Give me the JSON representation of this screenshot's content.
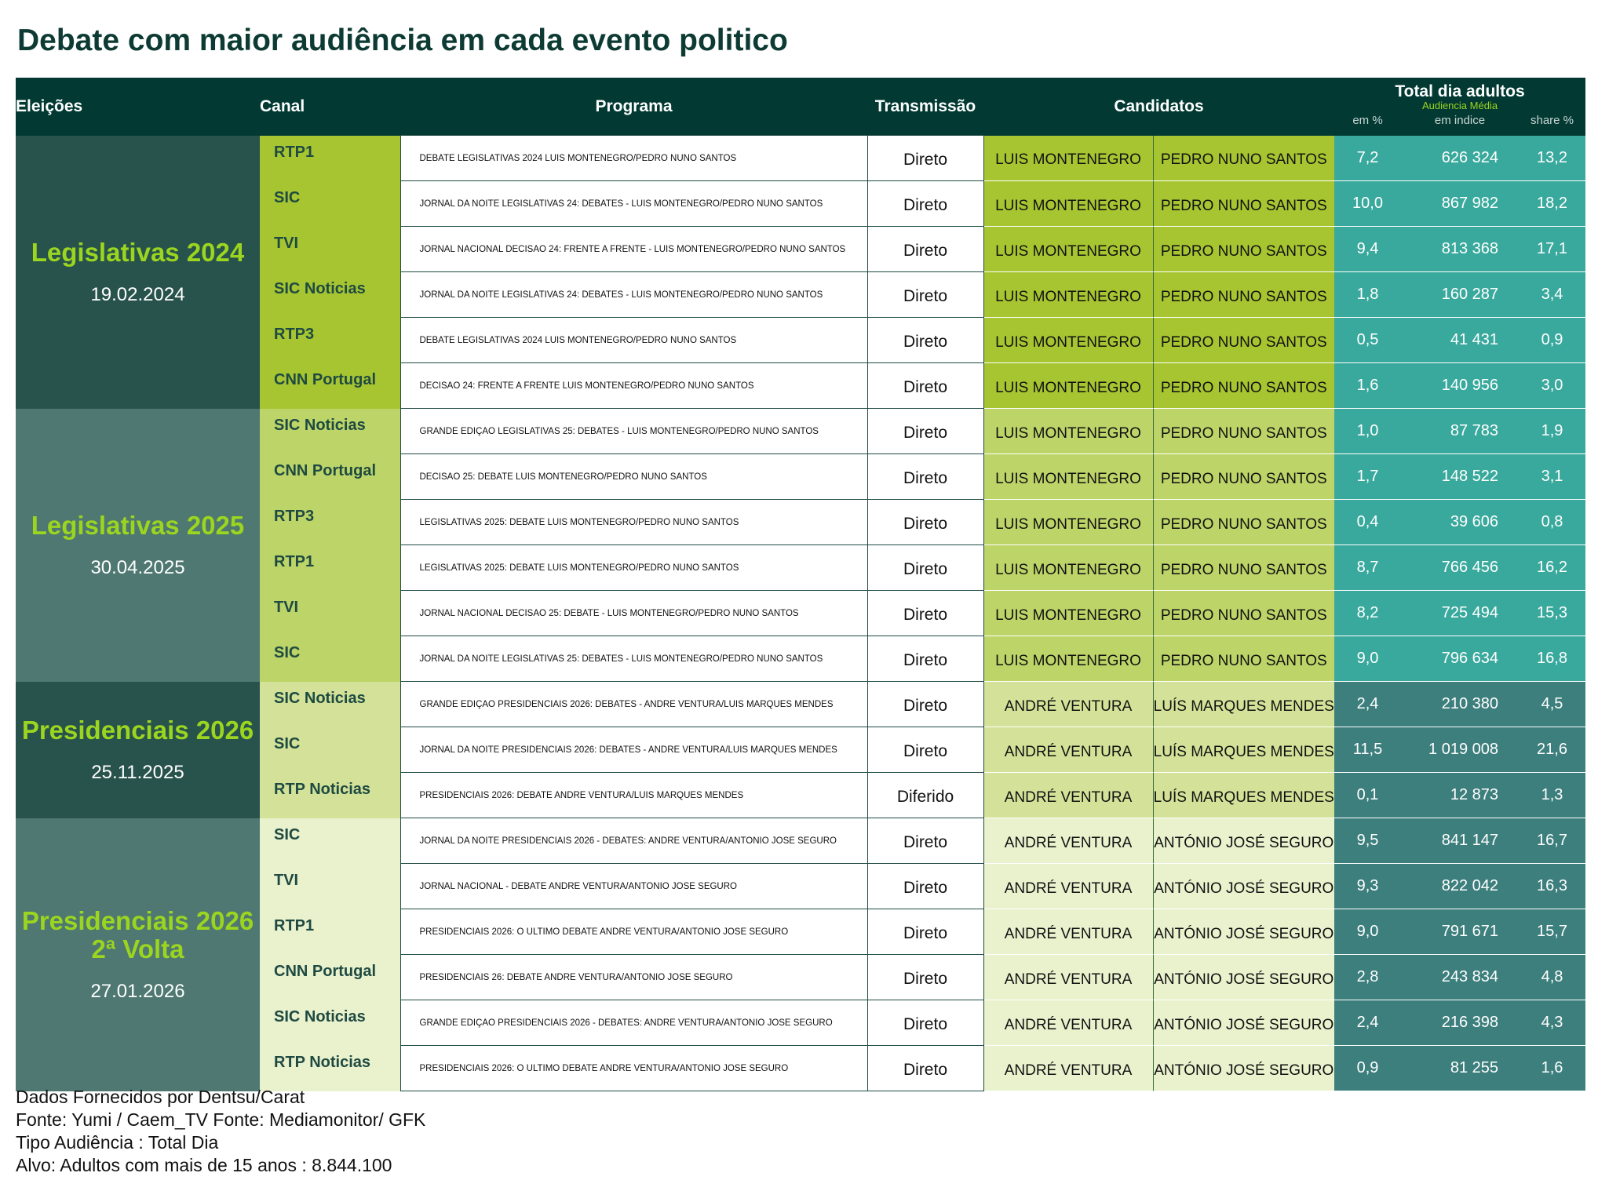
{
  "title": "Debate com maior audiência em cada evento politico",
  "header": {
    "eleicoes": "Eleições",
    "canal": "Canal",
    "programa": "Programa",
    "transmissao": "Transmissão",
    "candidatos": "Candidatos",
    "total": "Total dia adultos",
    "audiencia": "Audiencia Média",
    "em_pct": "em %",
    "em_indice": "em indice",
    "share": "share %"
  },
  "colors": {
    "header_bg": "#023a33",
    "elec_dark": "#28534d",
    "elec_light": "#4e7871",
    "accent": "#9bd51f",
    "canal_g1": "#a7c531",
    "canal_g2": "#bdd468",
    "canal_g3": "#d3e298",
    "canal_g4": "#e9f1cd",
    "teal_light": "#3aa99d",
    "teal_dark": "#3d7f7d"
  },
  "groups": [
    {
      "name": "Legislativas 2024",
      "date": "19.02.2024",
      "rows": [
        {
          "canal": "RTP1",
          "programa": "DEBATE LEGISLATIVAS 2024 LUIS MONTENEGRO/PEDRO NUNO SANTOS",
          "transmissao": "Direto",
          "cand1": "LUIS MONTENEGRO",
          "cand2": "PEDRO NUNO SANTOS",
          "pct": "7,2",
          "idx": "626 324",
          "share": "13,2"
        },
        {
          "canal": "SIC",
          "programa": "JORNAL DA NOITE LEGISLATIVAS 24: DEBATES - LUIS MONTENEGRO/PEDRO NUNO SANTOS",
          "transmissao": "Direto",
          "cand1": "LUIS MONTENEGRO",
          "cand2": "PEDRO NUNO SANTOS",
          "pct": "10,0",
          "idx": "867 982",
          "share": "18,2"
        },
        {
          "canal": "TVI",
          "programa": "JORNAL NACIONAL DECISAO 24: FRENTE A FRENTE - LUIS MONTENEGRO/PEDRO NUNO SANTOS",
          "transmissao": "Direto",
          "cand1": "LUIS MONTENEGRO",
          "cand2": "PEDRO NUNO SANTOS",
          "pct": "9,4",
          "idx": "813 368",
          "share": "17,1"
        },
        {
          "canal": "SIC Noticias",
          "programa": "JORNAL DA NOITE LEGISLATIVAS 24: DEBATES - LUIS MONTENEGRO/PEDRO NUNO SANTOS",
          "transmissao": "Direto",
          "cand1": "LUIS MONTENEGRO",
          "cand2": "PEDRO NUNO SANTOS",
          "pct": "1,8",
          "idx": "160 287",
          "share": "3,4"
        },
        {
          "canal": "RTP3",
          "programa": "DEBATE LEGISLATIVAS 2024 LUIS MONTENEGRO/PEDRO NUNO SANTOS",
          "transmissao": "Direto",
          "cand1": "LUIS MONTENEGRO",
          "cand2": "PEDRO NUNO SANTOS",
          "pct": "0,5",
          "idx": "41 431",
          "share": "0,9"
        },
        {
          "canal": "CNN Portugal",
          "programa": "DECISAO 24: FRENTE A FRENTE LUIS MONTENEGRO/PEDRO NUNO SANTOS",
          "transmissao": "Direto",
          "cand1": "LUIS MONTENEGRO",
          "cand2": "PEDRO NUNO SANTOS",
          "pct": "1,6",
          "idx": "140 956",
          "share": "3,0"
        }
      ]
    },
    {
      "name": "Legislativas 2025",
      "date": "30.04.2025",
      "rows": [
        {
          "canal": "SIC Noticias",
          "programa": "GRANDE EDIÇAO LEGISLATIVAS 25: DEBATES - LUIS MONTENEGRO/PEDRO NUNO SANTOS",
          "transmissao": "Direto",
          "cand1": "LUIS MONTENEGRO",
          "cand2": "PEDRO NUNO SANTOS",
          "pct": "1,0",
          "idx": "87 783",
          "share": "1,9"
        },
        {
          "canal": "CNN Portugal",
          "programa": "DECISAO 25: DEBATE LUIS MONTENEGRO/PEDRO NUNO SANTOS",
          "transmissao": "Direto",
          "cand1": "LUIS MONTENEGRO",
          "cand2": "PEDRO NUNO SANTOS",
          "pct": "1,7",
          "idx": "148 522",
          "share": "3,1"
        },
        {
          "canal": "RTP3",
          "programa": "LEGISLATIVAS 2025: DEBATE LUIS MONTENEGRO/PEDRO NUNO SANTOS",
          "transmissao": "Direto",
          "cand1": "LUIS MONTENEGRO",
          "cand2": "PEDRO NUNO SANTOS",
          "pct": "0,4",
          "idx": "39 606",
          "share": "0,8"
        },
        {
          "canal": "RTP1",
          "programa": "LEGISLATIVAS 2025: DEBATE LUIS MONTENEGRO/PEDRO NUNO SANTOS",
          "transmissao": "Direto",
          "cand1": "LUIS MONTENEGRO",
          "cand2": "PEDRO NUNO SANTOS",
          "pct": "8,7",
          "idx": "766 456",
          "share": "16,2"
        },
        {
          "canal": "TVI",
          "programa": "JORNAL NACIONAL DECISAO 25: DEBATE - LUIS MONTENEGRO/PEDRO NUNO SANTOS",
          "transmissao": "Direto",
          "cand1": "LUIS MONTENEGRO",
          "cand2": "PEDRO NUNO SANTOS",
          "pct": "8,2",
          "idx": "725 494",
          "share": "15,3"
        },
        {
          "canal": "SIC",
          "programa": "JORNAL DA NOITE LEGISLATIVAS 25: DEBATES - LUIS MONTENEGRO/PEDRO NUNO SANTOS",
          "transmissao": "Direto",
          "cand1": "LUIS MONTENEGRO",
          "cand2": "PEDRO NUNO SANTOS",
          "pct": "9,0",
          "idx": "796 634",
          "share": "16,8"
        }
      ]
    },
    {
      "name": "Presidenciais 2026",
      "date": "25.11.2025",
      "rows": [
        {
          "canal": "SIC Noticias",
          "programa": "GRANDE EDIÇAO PRESIDENCIAIS 2026: DEBATES - ANDRE VENTURA/LUIS MARQUES MENDES",
          "transmissao": "Direto",
          "cand1": "ANDRÉ VENTURA",
          "cand2": "LUÍS MARQUES MENDES",
          "pct": "2,4",
          "idx": "210 380",
          "share": "4,5"
        },
        {
          "canal": "SIC",
          "programa": "JORNAL DA NOITE PRESIDENCIAIS 2026: DEBATES - ANDRE VENTURA/LUIS MARQUES MENDES",
          "transmissao": "Direto",
          "cand1": "ANDRÉ VENTURA",
          "cand2": "LUÍS MARQUES MENDES",
          "pct": "11,5",
          "idx": "1 019 008",
          "share": "21,6"
        },
        {
          "canal": "RTP Noticias",
          "programa": "PRESIDENCIAIS 2026: DEBATE ANDRE VENTURA/LUIS MARQUES MENDES",
          "transmissao": "Diferido",
          "cand1": "ANDRÉ VENTURA",
          "cand2": "LUÍS MARQUES MENDES",
          "pct": "0,1",
          "idx": "12 873",
          "share": "1,3"
        }
      ]
    },
    {
      "name": "Presidenciais 2026\n2ª Volta",
      "date": "27.01.2026",
      "rows": [
        {
          "canal": "SIC",
          "programa": "JORNAL DA NOITE PRESIDENCIAIS 2026 - DEBATES: ANDRE VENTURA/ANTONIO JOSE SEGURO",
          "transmissao": "Direto",
          "cand1": "ANDRÉ VENTURA",
          "cand2": "ANTÓNIO JOSÉ SEGURO",
          "pct": "9,5",
          "idx": "841 147",
          "share": "16,7"
        },
        {
          "canal": "TVI",
          "programa": "JORNAL NACIONAL - DEBATE ANDRE VENTURA/ANTONIO JOSE SEGURO",
          "transmissao": "Direto",
          "cand1": "ANDRÉ VENTURA",
          "cand2": "ANTÓNIO JOSÉ SEGURO",
          "pct": "9,3",
          "idx": "822 042",
          "share": "16,3"
        },
        {
          "canal": "RTP1",
          "programa": "PRESIDENCIAIS 2026: O ULTIMO DEBATE ANDRE VENTURA/ANTONIO JOSE SEGURO",
          "transmissao": "Direto",
          "cand1": "ANDRÉ VENTURA",
          "cand2": "ANTÓNIO JOSÉ SEGURO",
          "pct": "9,0",
          "idx": "791 671",
          "share": "15,7"
        },
        {
          "canal": "CNN Portugal",
          "programa": "PRESIDENCIAIS 26: DEBATE ANDRE VENTURA/ANTONIO JOSE SEGURO",
          "transmissao": "Direto",
          "cand1": "ANDRÉ VENTURA",
          "cand2": "ANTÓNIO JOSÉ SEGURO",
          "pct": "2,8",
          "idx": "243 834",
          "share": "4,8"
        },
        {
          "canal": "SIC Noticias",
          "programa": "GRANDE EDIÇAO PRESIDENCIAIS 2026 - DEBATES: ANDRE VENTURA/ANTONIO JOSE SEGURO",
          "transmissao": "Direto",
          "cand1": "ANDRÉ VENTURA",
          "cand2": "ANTÓNIO JOSÉ SEGURO",
          "pct": "2,4",
          "idx": "216 398",
          "share": "4,3"
        },
        {
          "canal": "RTP Noticias",
          "programa": "PRESIDENCIAIS 2026: O ULTIMO DEBATE ANDRE VENTURA/ANTONIO JOSE SEGURO",
          "transmissao": "Direto",
          "cand1": "ANDRÉ VENTURA",
          "cand2": "ANTÓNIO JOSÉ SEGURO",
          "pct": "0,9",
          "idx": "81 255",
          "share": "1,6"
        }
      ]
    }
  ],
  "footer": [
    "Dados Fornecidos por Dentsu/Carat",
    "Fonte: Yumi / Caem_TV Fonte: Mediamonitor/ GFK",
    "Tipo Audiência : Total Dia",
    "Alvo: Adultos com mais de 15 anos : 8.844.100"
  ]
}
